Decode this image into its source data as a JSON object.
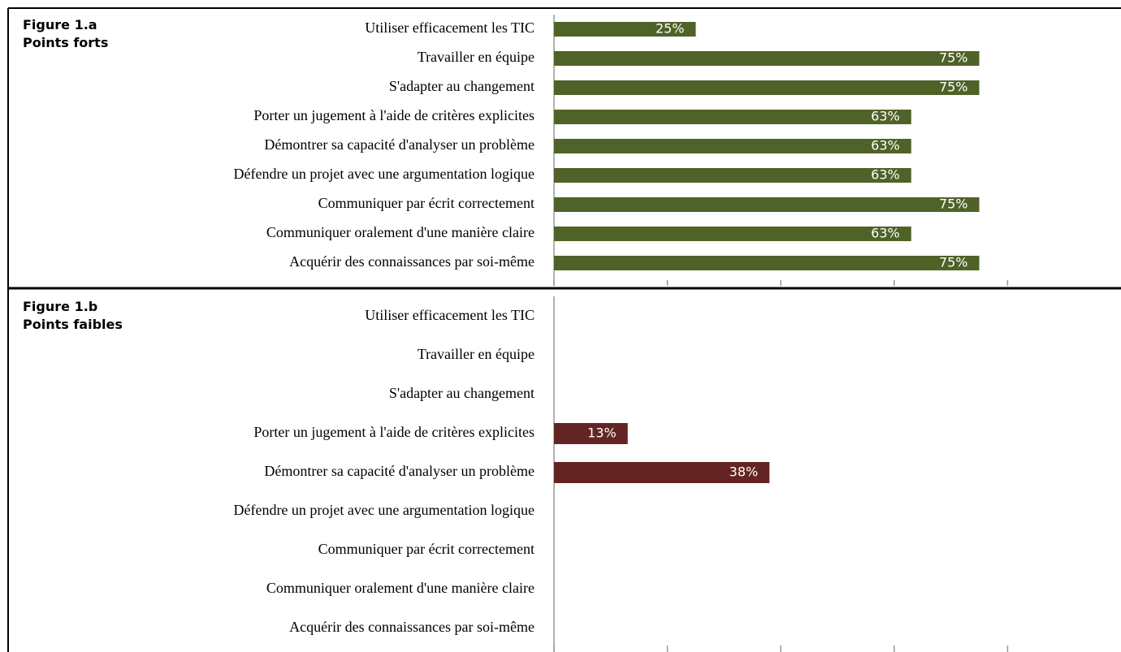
{
  "chart_data": [
    {
      "type": "bar",
      "orientation": "horizontal",
      "title": "Figure 1.a",
      "subtitle": "Points forts",
      "categories": [
        "Utiliser efficacement les TIC",
        "Travailler en équipe",
        "S'adapter au changement",
        "Porter un jugement à l'aide de critères explicites",
        "Démontrer sa capacité d'analyser un problème",
        "Défendre un projet avec une argumentation logique",
        "Communiquer par écrit correctement",
        "Communiquer oralement d'une manière claire",
        "Acquérir des connaissances par soi-même"
      ],
      "values": [
        25,
        75,
        75,
        63,
        63,
        63,
        75,
        63,
        75
      ],
      "value_labels": [
        "25%",
        "75%",
        "75%",
        "63%",
        "63%",
        "63%",
        "75%",
        "63%",
        "75%"
      ],
      "color": "#4f6228",
      "xlim": [
        0,
        100
      ],
      "xticks": [
        0,
        20,
        40,
        60,
        80
      ]
    },
    {
      "type": "bar",
      "orientation": "horizontal",
      "title": "Figure 1.b",
      "subtitle": "Points faibles",
      "categories": [
        "Utiliser efficacement les TIC",
        "Travailler en équipe",
        "S'adapter au changement",
        "Porter un jugement à l'aide de critères explicites",
        "Démontrer sa capacité d'analyser un problème",
        "Défendre un projet avec une argumentation logique",
        "Communiquer par écrit correctement",
        "Communiquer oralement d'une manière claire",
        "Acquérir des connaissances par soi-même"
      ],
      "values": [
        null,
        null,
        null,
        13,
        38,
        null,
        null,
        null,
        null
      ],
      "value_labels": [
        null,
        null,
        null,
        "13%",
        "38%",
        null,
        null,
        null,
        null
      ],
      "color": "#632523",
      "xlim": [
        0,
        100
      ],
      "xticks": [
        0,
        20,
        40,
        60,
        80
      ]
    }
  ]
}
